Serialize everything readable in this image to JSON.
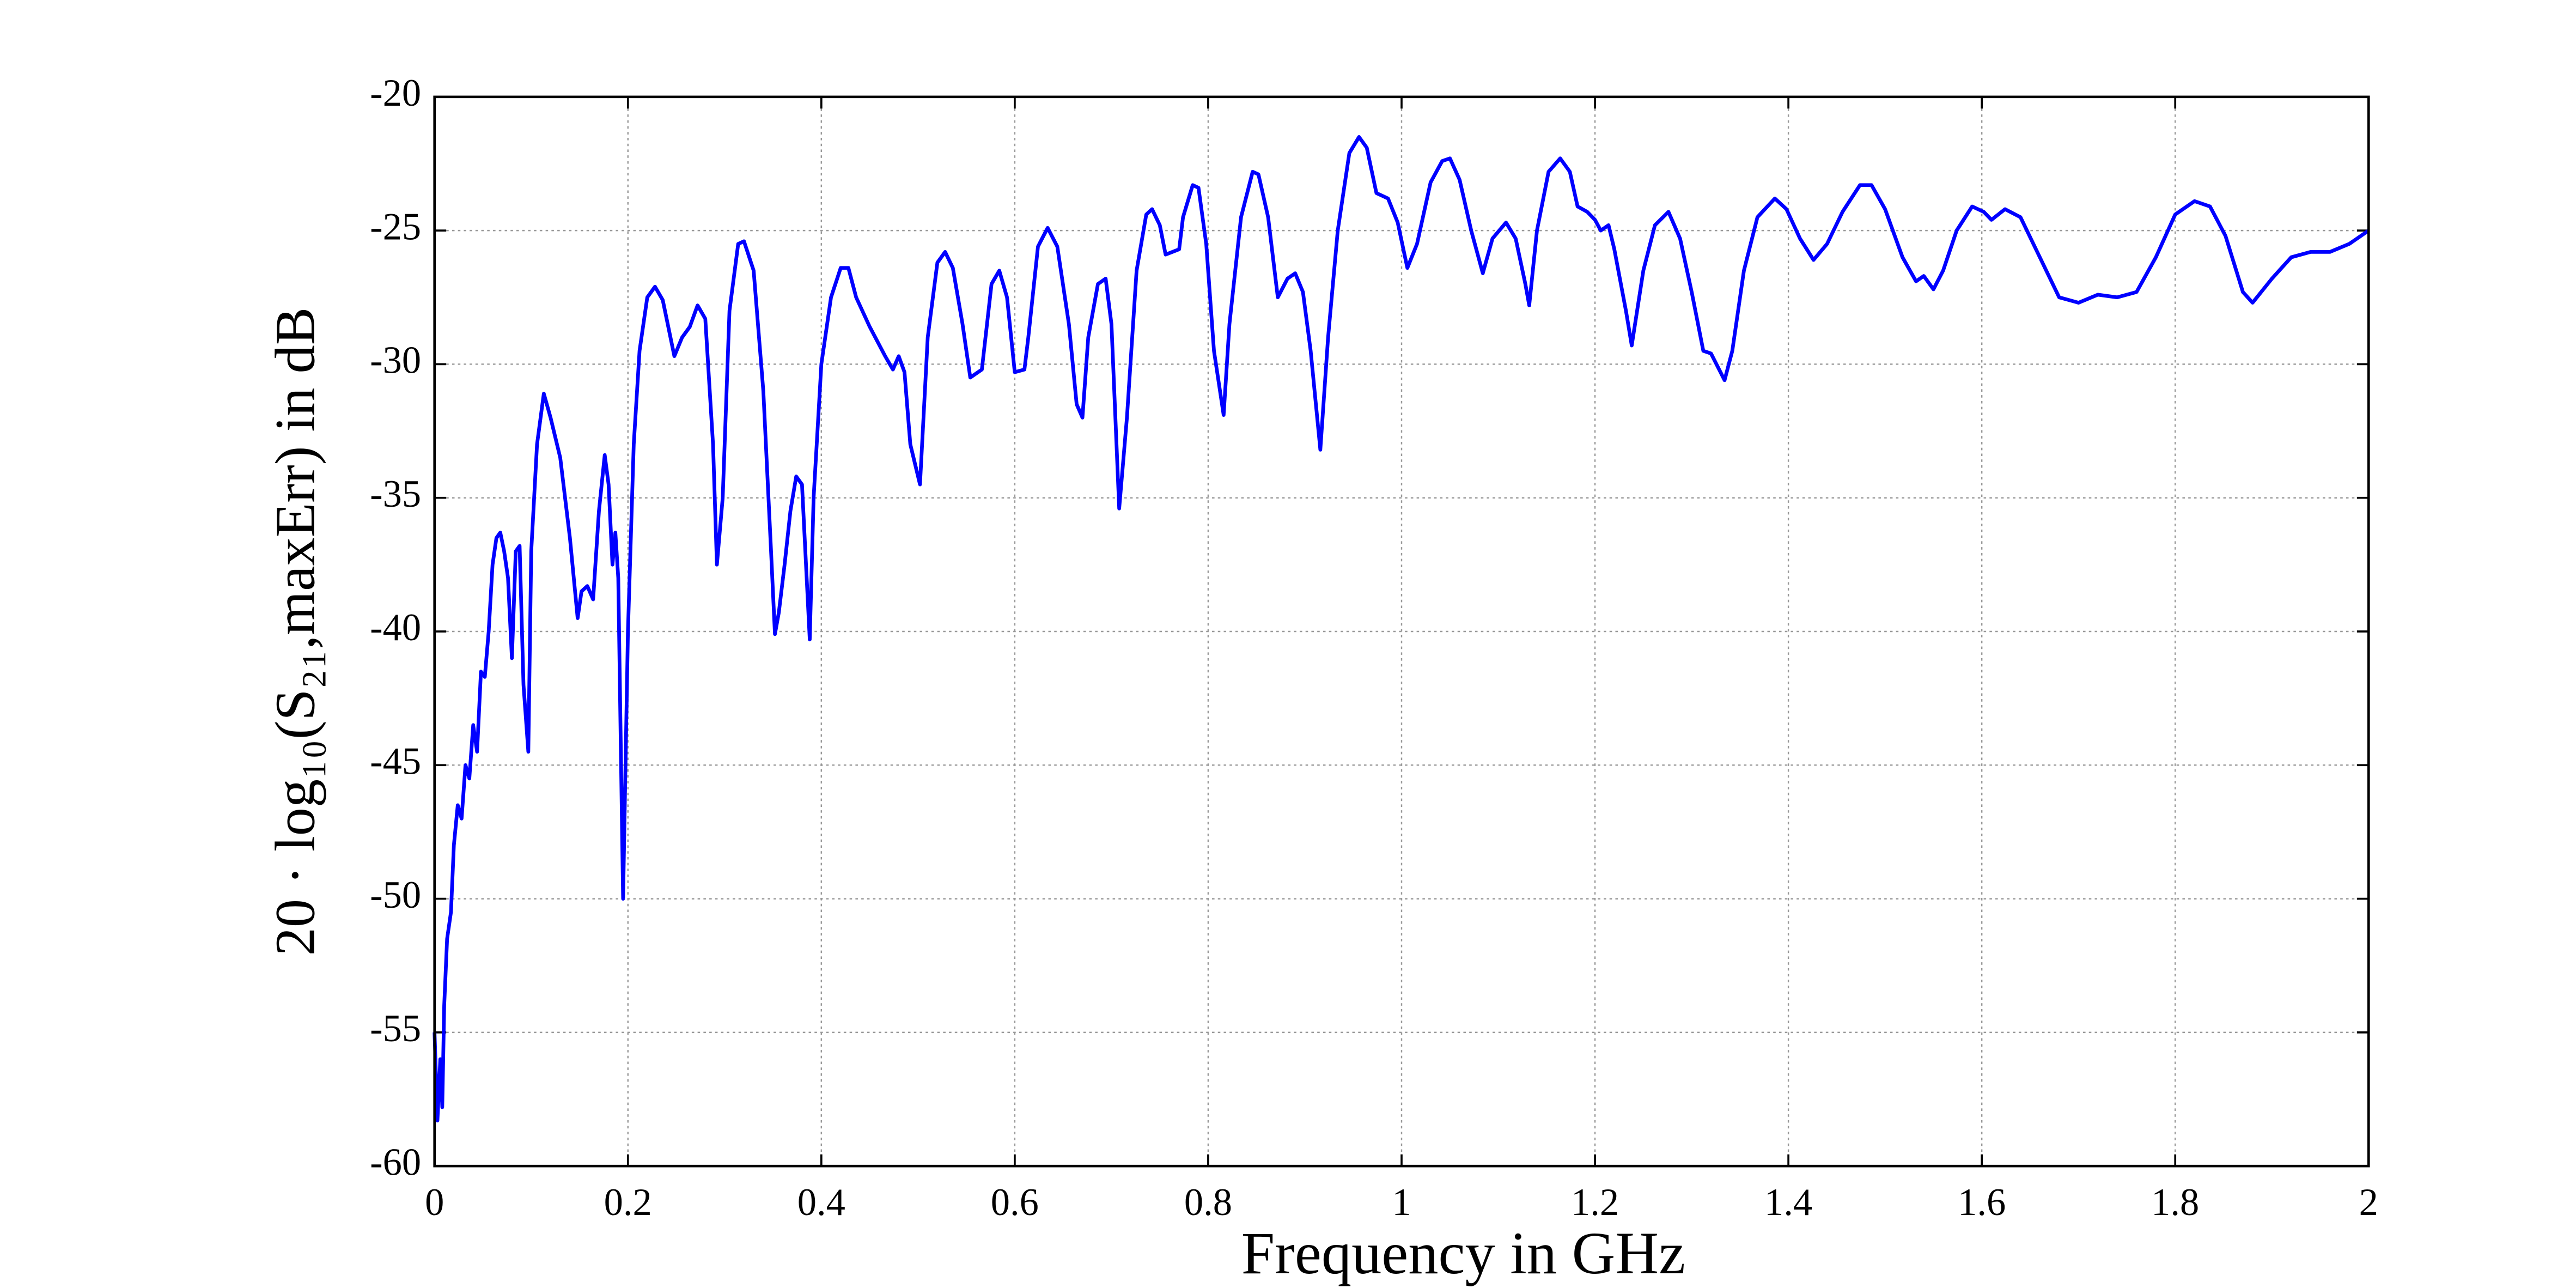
{
  "chart_data": {
    "type": "line",
    "xlabel": "Frequency in GHz",
    "ylabel": "20 · log₁₀(S₂₁,maxErr) in dB",
    "color": "#0000ff",
    "grid": true,
    "xlim": [
      0,
      2
    ],
    "xticks": [
      0,
      0.2,
      0.4,
      0.6,
      0.8,
      1,
      1.2,
      1.4,
      1.6,
      1.8,
      2
    ],
    "ylim": [
      -60,
      -20
    ],
    "yticks": [
      -20,
      -25,
      -30,
      -35,
      -40,
      -45,
      -50,
      -55,
      -60
    ],
    "x": [
      0,
      0.003,
      0.006,
      0.008,
      0.01,
      0.013,
      0.017,
      0.02,
      0.024,
      0.028,
      0.032,
      0.036,
      0.04,
      0.044,
      0.048,
      0.052,
      0.056,
      0.06,
      0.064,
      0.068,
      0.072,
      0.076,
      0.08,
      0.084,
      0.088,
      0.092,
      0.097,
      0.1,
      0.106,
      0.113,
      0.12,
      0.13,
      0.14,
      0.148,
      0.152,
      0.158,
      0.164,
      0.17,
      0.176,
      0.18,
      0.184,
      0.187,
      0.19,
      0.195,
      0.2,
      0.206,
      0.212,
      0.22,
      0.228,
      0.236,
      0.248,
      0.256,
      0.264,
      0.272,
      0.28,
      0.288,
      0.292,
      0.298,
      0.305,
      0.314,
      0.32,
      0.33,
      0.34,
      0.348,
      0.352,
      0.356,
      0.362,
      0.368,
      0.374,
      0.38,
      0.388,
      0.392,
      0.4,
      0.41,
      0.42,
      0.428,
      0.436,
      0.45,
      0.466,
      0.474,
      0.48,
      0.486,
      0.492,
      0.502,
      0.51,
      0.52,
      0.528,
      0.536,
      0.546,
      0.554,
      0.566,
      0.576,
      0.584,
      0.592,
      0.6,
      0.61,
      0.614,
      0.624,
      0.634,
      0.644,
      0.656,
      0.664,
      0.67,
      0.676,
      0.686,
      0.694,
      0.7,
      0.708,
      0.716,
      0.726,
      0.736,
      0.742,
      0.75,
      0.756,
      0.77,
      0.774,
      0.784,
      0.79,
      0.798,
      0.806,
      0.816,
      0.822,
      0.834,
      0.846,
      0.852,
      0.862,
      0.872,
      0.882,
      0.89,
      0.898,
      0.906,
      0.916,
      0.924,
      0.934,
      0.946,
      0.956,
      0.964,
      0.974,
      0.986,
      0.996,
      1.006,
      1.016,
      1.03,
      1.042,
      1.05,
      1.06,
      1.072,
      1.084,
      1.094,
      1.108,
      1.118,
      1.128,
      1.132,
      1.14,
      1.152,
      1.164,
      1.174,
      1.182,
      1.192,
      1.2,
      1.206,
      1.214,
      1.22,
      1.232,
      1.238,
      1.25,
      1.262,
      1.276,
      1.288,
      1.3,
      1.312,
      1.32,
      1.334,
      1.342,
      1.354,
      1.368,
      1.386,
      1.398,
      1.412,
      1.426,
      1.44,
      1.456,
      1.474,
      1.486,
      1.5,
      1.518,
      1.532,
      1.54,
      1.55,
      1.56,
      1.574,
      1.59,
      1.602,
      1.61,
      1.624,
      1.64,
      1.66,
      1.68,
      1.7,
      1.72,
      1.74,
      1.76,
      1.78,
      1.8,
      1.82,
      1.836,
      1.852,
      1.87,
      1.88,
      1.9,
      1.92,
      1.94,
      1.96,
      1.98,
      2
    ],
    "values": [
      -55,
      -58.3,
      -56,
      -57.8,
      -54,
      -51.5,
      -50.5,
      -48,
      -46.5,
      -47,
      -45,
      -45.5,
      -43.5,
      -44.5,
      -41.5,
      -41.7,
      -40,
      -37.5,
      -36.5,
      -36.3,
      -37,
      -38,
      -41,
      -37,
      -36.8,
      -42,
      -44.5,
      -37,
      -33,
      -31.1,
      -32,
      -33.5,
      -36.5,
      -39.5,
      -38.5,
      -38.3,
      -38.8,
      -35.5,
      -33.4,
      -34.5,
      -37.5,
      -36.3,
      -38,
      -50,
      -40,
      -33,
      -29.5,
      -27.5,
      -27.1,
      -27.6,
      -29.7,
      -29,
      -28.6,
      -27.8,
      -28.3,
      -33,
      -37.5,
      -35,
      -28,
      -25.5,
      -25.4,
      -26.5,
      -31,
      -37,
      -40.1,
      -39.3,
      -37.5,
      -35.5,
      -34.2,
      -34.5,
      -40.3,
      -35,
      -30,
      -27.5,
      -26.4,
      -26.4,
      -27.5,
      -28.6,
      -29.7,
      -30.2,
      -29.7,
      -30.3,
      -33,
      -34.5,
      -29,
      -26.2,
      -25.8,
      -26.4,
      -28.5,
      -30.5,
      -30.2,
      -27,
      -26.5,
      -27.5,
      -30.3,
      -30.2,
      -29,
      -25.6,
      -24.9,
      -25.6,
      -28.5,
      -31.5,
      -32,
      -29,
      -27,
      -26.8,
      -28.5,
      -35.4,
      -32,
      -26.5,
      -24.4,
      -24.2,
      -24.8,
      -25.9,
      -25.7,
      -24.5,
      -23.3,
      -23.4,
      -25.5,
      -29.5,
      -31.9,
      -28.5,
      -24.5,
      -22.8,
      -22.9,
      -24.5,
      -27.5,
      -26.8,
      -26.6,
      -27.3,
      -29.5,
      -33.2,
      -29,
      -25,
      -22.1,
      -21.5,
      -21.9,
      -23.6,
      -23.8,
      -24.7,
      -26.4,
      -25.5,
      -23.2,
      -22.4,
      -22.3,
      -23.1,
      -25,
      -26.6,
      -25.3,
      -24.7,
      -25.3,
      -27,
      -27.8,
      -25,
      -22.8,
      -22.3,
      -22.8,
      -24.1,
      -24.3,
      -24.6,
      -25,
      -24.8,
      -25.7,
      -28,
      -29.3,
      -26.5,
      -24.8,
      -24.3,
      -25.3,
      -27.3,
      -29.5,
      -29.6,
      -30.6,
      -29.5,
      -26.5,
      -24.5,
      -23.8,
      -24.2,
      -25.3,
      -26.1,
      -25.5,
      -24.3,
      -23.3,
      -23.3,
      -24.2,
      -26,
      -26.9,
      -26.7,
      -27.2,
      -26.5,
      -25,
      -24.1,
      -24.3,
      -24.6,
      -24.2,
      -24.5,
      -26,
      -27.5,
      -27.7,
      -27.4,
      -27.5,
      -27.3,
      -26,
      -24.4,
      -23.9,
      -24.1,
      -25.2,
      -27.3,
      -27.7,
      -26.8,
      -26,
      -25.8,
      -25.8,
      -25.5,
      -25
    ]
  }
}
